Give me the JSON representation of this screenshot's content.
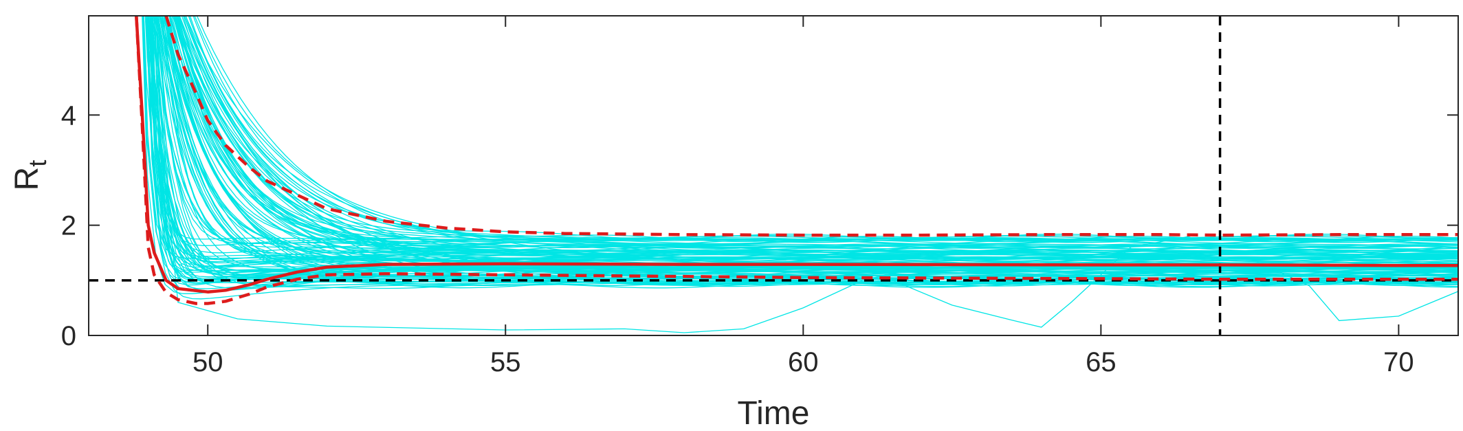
{
  "chart_data": {
    "type": "line",
    "title": "",
    "xlabel": "Time",
    "ylabel": "R",
    "ylabel_subscript": "t",
    "xlim": [
      48,
      71
    ],
    "ylim": [
      0,
      5.8
    ],
    "xticks": [
      "50",
      "55",
      "60",
      "65",
      "70"
    ],
    "yticks": [
      "0",
      "2",
      "4"
    ],
    "grid": false,
    "legend": "none",
    "reference_lines": [
      {
        "orientation": "horizontal",
        "y": 1,
        "style": "dashed",
        "color": "#000000"
      },
      {
        "orientation": "vertical",
        "x": 67,
        "style": "dashed",
        "color": "#000000"
      }
    ],
    "ensemble": {
      "color": "#00e5e5",
      "trajectory_count": 120,
      "typical_final_range": [
        0.9,
        1.8
      ]
    },
    "series": [
      {
        "role": "median",
        "color": "#dd1c1c",
        "style": "solid",
        "x": [
          48.8,
          48.9,
          49.0,
          49.1,
          49.3,
          49.5,
          50.0,
          50.3,
          50.7,
          51.0,
          51.5,
          52.0,
          53.0,
          55.0,
          58.0,
          60.0,
          65.0,
          67.0,
          70.0,
          71.0
        ],
        "y": [
          5.8,
          4.0,
          2.0,
          1.5,
          1.0,
          0.85,
          0.79,
          0.82,
          0.92,
          1.02,
          1.15,
          1.24,
          1.29,
          1.3,
          1.29,
          1.29,
          1.28,
          1.28,
          1.27,
          1.27
        ]
      },
      {
        "role": "upper-bound",
        "color": "#dd1c1c",
        "style": "dashed",
        "x": [
          49.3,
          49.5,
          49.8,
          50.0,
          50.3,
          50.7,
          51.0,
          51.5,
          52.0,
          53.0,
          54.0,
          55.0,
          56.0,
          58.0,
          60.0,
          62.0,
          64.0,
          66.0,
          67.0,
          69.0,
          71.0
        ],
        "y": [
          5.8,
          5.1,
          4.4,
          3.9,
          3.45,
          3.05,
          2.8,
          2.55,
          2.3,
          2.07,
          1.95,
          1.88,
          1.85,
          1.83,
          1.82,
          1.82,
          1.83,
          1.83,
          1.82,
          1.83,
          1.83
        ]
      },
      {
        "role": "lower-bound",
        "color": "#dd1c1c",
        "style": "dashed",
        "x": [
          48.8,
          48.9,
          49.0,
          49.1,
          49.3,
          49.5,
          49.8,
          50.0,
          50.3,
          50.7,
          51.0,
          51.5,
          52.0,
          53.0,
          55.0,
          60.0,
          65.0,
          67.0,
          70.0,
          71.0
        ],
        "y": [
          5.8,
          3.8,
          1.6,
          1.1,
          0.78,
          0.65,
          0.58,
          0.58,
          0.62,
          0.75,
          0.88,
          1.02,
          1.1,
          1.12,
          1.1,
          1.05,
          1.03,
          1.02,
          1.02,
          1.02
        ]
      }
    ]
  }
}
